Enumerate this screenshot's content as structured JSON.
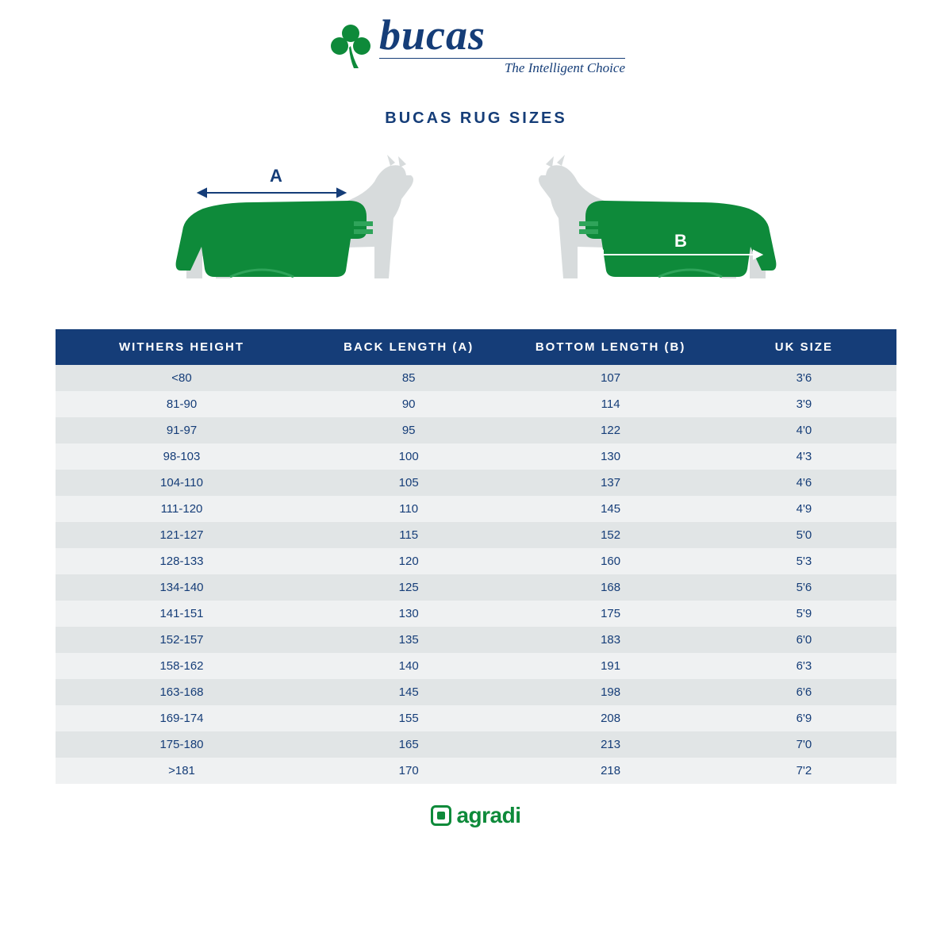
{
  "brand": {
    "name": "bucas",
    "tagline": "The Intelligent Choice",
    "logo_color": "#0e8a3a",
    "text_color": "#153d78"
  },
  "title": "BUCAS RUG SIZES",
  "diagram": {
    "label_a": "A",
    "label_b": "B",
    "horse_fill": "#d7dbdc",
    "rug_fill": "#0e8a3a",
    "rug_accent": "#2fa45a",
    "text_color": "#153d78"
  },
  "table": {
    "header_bg": "#153d78",
    "header_fg": "#ffffff",
    "row_odd_bg": "#e1e5e6",
    "row_even_bg": "#eff1f2",
    "cell_fg": "#153d78",
    "columns": [
      "WITHERS HEIGHT",
      "BACK LENGTH (A)",
      "BOTTOM LENGTH (B)",
      "UK SIZE"
    ],
    "rows": [
      [
        "<80",
        "85",
        "107",
        "3'6"
      ],
      [
        "81-90",
        "90",
        "114",
        "3'9"
      ],
      [
        "91-97",
        "95",
        "122",
        "4'0"
      ],
      [
        "98-103",
        "100",
        "130",
        "4'3"
      ],
      [
        "104-110",
        "105",
        "137",
        "4'6"
      ],
      [
        "111-120",
        "110",
        "145",
        "4'9"
      ],
      [
        "121-127",
        "115",
        "152",
        "5'0"
      ],
      [
        "128-133",
        "120",
        "160",
        "5'3"
      ],
      [
        "134-140",
        "125",
        "168",
        "5'6"
      ],
      [
        "141-151",
        "130",
        "175",
        "5'9"
      ],
      [
        "152-157",
        "135",
        "183",
        "6'0"
      ],
      [
        "158-162",
        "140",
        "191",
        "6'3"
      ],
      [
        "163-168",
        "145",
        "198",
        "6'6"
      ],
      [
        "169-174",
        "155",
        "208",
        "6'9"
      ],
      [
        "175-180",
        "165",
        "213",
        "7'0"
      ],
      [
        ">181",
        "170",
        "218",
        "7'2"
      ]
    ]
  },
  "footer": {
    "text": "agradi",
    "color": "#0e8a3a"
  }
}
